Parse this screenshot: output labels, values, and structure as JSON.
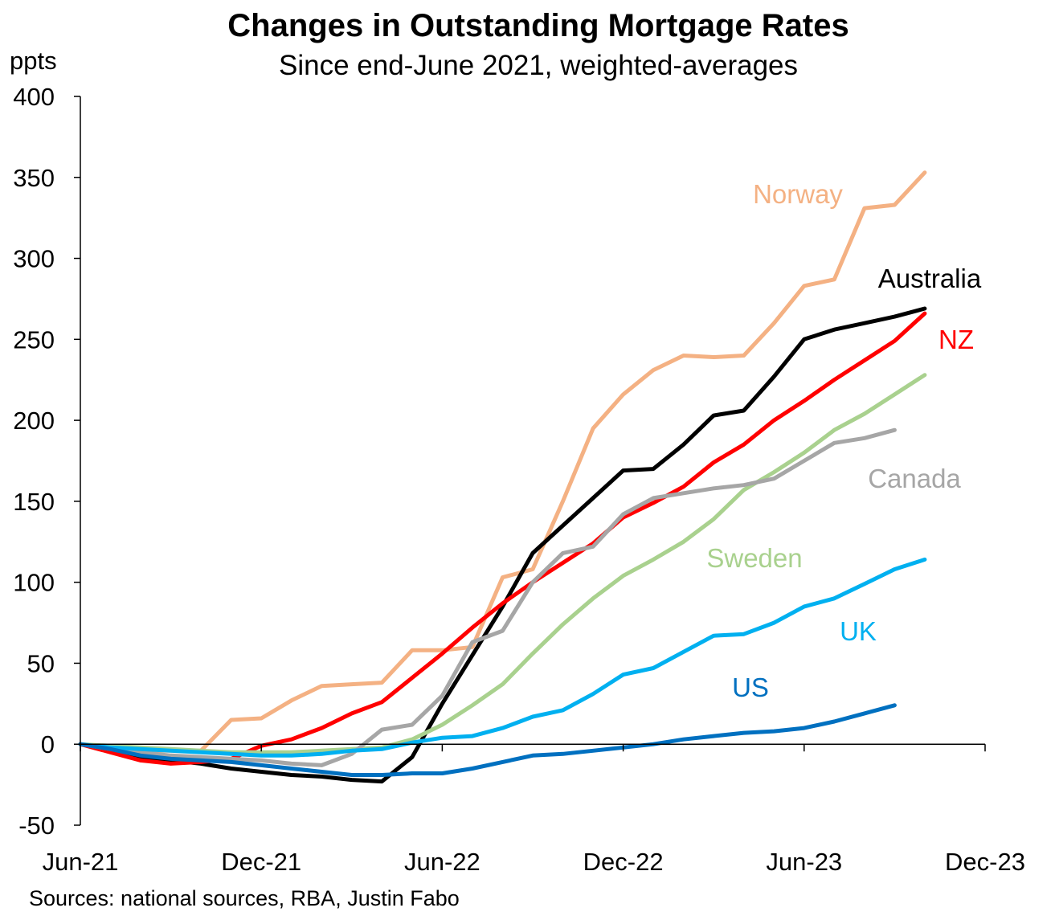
{
  "chart_data": {
    "type": "line",
    "title": "Changes in Outstanding Mortgage Rates",
    "subtitle": "Since end-June 2021, weighted-averages",
    "ylabel": "ppts",
    "source": "Sources: national sources, RBA, Justin Fabo",
    "ylim": [
      -50,
      400
    ],
    "yticks": [
      -50,
      0,
      50,
      100,
      150,
      200,
      250,
      300,
      350,
      400
    ],
    "ytick_labels": [
      "-50",
      "0",
      "50",
      "100",
      "150",
      "200",
      "250",
      "300",
      "350",
      "400"
    ],
    "xlim": [
      "2021-06",
      "2023-12"
    ],
    "xticks": [
      "2021-06",
      "2021-12",
      "2022-06",
      "2022-12",
      "2023-06",
      "2023-12"
    ],
    "xtick_labels": [
      "Jun-21",
      "Dec-21",
      "Jun-22",
      "Dec-22",
      "Jun-23",
      "Dec-23"
    ],
    "grid": false,
    "legend": "inline labels",
    "series": [
      {
        "name": "Norway",
        "color": "#F4B183",
        "x": [
          "2021-06",
          "2021-07",
          "2021-08",
          "2021-09",
          "2021-10",
          "2021-11",
          "2021-12",
          "2022-01",
          "2022-02",
          "2022-03",
          "2022-04",
          "2022-05",
          "2022-06",
          "2022-07",
          "2022-08",
          "2022-09",
          "2022-10",
          "2022-11",
          "2022-12",
          "2023-01",
          "2023-02",
          "2023-03",
          "2023-04",
          "2023-05",
          "2023-06",
          "2023-07",
          "2023-08",
          "2023-09",
          "2023-10"
        ],
        "values": [
          0,
          -2,
          -4,
          -4,
          -4,
          15,
          16,
          27,
          36,
          37,
          38,
          58,
          58,
          60,
          103,
          108,
          150,
          195,
          216,
          231,
          240,
          239,
          240,
          260,
          283,
          287,
          331,
          333,
          353
        ]
      },
      {
        "name": "Australia",
        "color": "#000000",
        "x": [
          "2021-06",
          "2021-07",
          "2021-08",
          "2021-09",
          "2021-10",
          "2021-11",
          "2021-12",
          "2022-01",
          "2022-02",
          "2022-03",
          "2022-04",
          "2022-05",
          "2022-06",
          "2022-07",
          "2022-08",
          "2022-09",
          "2022-10",
          "2022-11",
          "2022-12",
          "2023-01",
          "2023-02",
          "2023-03",
          "2023-04",
          "2023-05",
          "2023-06",
          "2023-07",
          "2023-08",
          "2023-09",
          "2023-10"
        ],
        "values": [
          0,
          -4,
          -8,
          -10,
          -12,
          -15,
          -17,
          -19,
          -20,
          -22,
          -23,
          -8,
          25,
          55,
          85,
          118,
          135,
          152,
          169,
          170,
          185,
          203,
          206,
          227,
          250,
          256,
          260,
          264,
          269
        ]
      },
      {
        "name": "NZ",
        "color": "#FF0000",
        "x": [
          "2021-06",
          "2021-07",
          "2021-08",
          "2021-09",
          "2021-10",
          "2021-11",
          "2021-12",
          "2022-01",
          "2022-02",
          "2022-03",
          "2022-04",
          "2022-05",
          "2022-06",
          "2022-07",
          "2022-08",
          "2022-09",
          "2022-10",
          "2022-11",
          "2022-12",
          "2023-01",
          "2023-02",
          "2023-03",
          "2023-04",
          "2023-05",
          "2023-06",
          "2023-07",
          "2023-08",
          "2023-09",
          "2023-10"
        ],
        "values": [
          0,
          -5,
          -10,
          -12,
          -11,
          -9,
          -1,
          3,
          10,
          19,
          26,
          41,
          56,
          72,
          87,
          100,
          112,
          124,
          140,
          149,
          159,
          174,
          185,
          200,
          212,
          225,
          237,
          249,
          266
        ]
      },
      {
        "name": "Sweden",
        "color": "#A9D18E",
        "x": [
          "2021-06",
          "2021-07",
          "2021-08",
          "2021-09",
          "2021-10",
          "2021-11",
          "2021-12",
          "2022-01",
          "2022-02",
          "2022-03",
          "2022-04",
          "2022-05",
          "2022-06",
          "2022-07",
          "2022-08",
          "2022-09",
          "2022-10",
          "2022-11",
          "2022-12",
          "2023-01",
          "2023-02",
          "2023-03",
          "2023-04",
          "2023-05",
          "2023-06",
          "2023-07",
          "2023-08",
          "2023-09",
          "2023-10"
        ],
        "values": [
          0,
          -1,
          -2,
          -3,
          -4,
          -5,
          -5,
          -5,
          -4,
          -3,
          -2,
          3,
          12,
          24,
          37,
          56,
          74,
          90,
          104,
          114,
          125,
          139,
          157,
          168,
          180,
          194,
          204,
          216,
          228
        ]
      },
      {
        "name": "Canada",
        "color": "#A6A6A6",
        "x": [
          "2021-06",
          "2021-07",
          "2021-08",
          "2021-09",
          "2021-10",
          "2021-11",
          "2021-12",
          "2022-01",
          "2022-02",
          "2022-03",
          "2022-04",
          "2022-05",
          "2022-06",
          "2022-07",
          "2022-08",
          "2022-09",
          "2022-10",
          "2022-11",
          "2022-12",
          "2023-01",
          "2023-02",
          "2023-03",
          "2023-04",
          "2023-05",
          "2023-06",
          "2023-07",
          "2023-08",
          "2023-09"
        ],
        "values": [
          0,
          -3,
          -5,
          -7,
          -8,
          -9,
          -10,
          -12,
          -13,
          -6,
          9,
          12,
          30,
          63,
          70,
          100,
          118,
          122,
          142,
          152,
          155,
          158,
          160,
          164,
          175,
          186,
          189,
          194
        ]
      },
      {
        "name": "UK",
        "color": "#00B0F0",
        "x": [
          "2021-06",
          "2021-07",
          "2021-08",
          "2021-09",
          "2021-10",
          "2021-11",
          "2021-12",
          "2022-01",
          "2022-02",
          "2022-03",
          "2022-04",
          "2022-05",
          "2022-06",
          "2022-07",
          "2022-08",
          "2022-09",
          "2022-10",
          "2022-11",
          "2022-12",
          "2023-01",
          "2023-02",
          "2023-03",
          "2023-04",
          "2023-05",
          "2023-06",
          "2023-07",
          "2023-08",
          "2023-09",
          "2023-10"
        ],
        "values": [
          0,
          -2,
          -3,
          -4,
          -5,
          -6,
          -7,
          -7,
          -6,
          -4,
          -3,
          1,
          4,
          5,
          10,
          17,
          21,
          31,
          43,
          47,
          57,
          67,
          68,
          75,
          85,
          90,
          99,
          108,
          114
        ]
      },
      {
        "name": "US",
        "color": "#0070C0",
        "x": [
          "2021-06",
          "2021-07",
          "2021-08",
          "2021-09",
          "2021-10",
          "2021-11",
          "2021-12",
          "2022-01",
          "2022-02",
          "2022-03",
          "2022-04",
          "2022-05",
          "2022-06",
          "2022-07",
          "2022-08",
          "2022-09",
          "2022-10",
          "2022-11",
          "2022-12",
          "2023-01",
          "2023-02",
          "2023-03",
          "2023-04",
          "2023-05",
          "2023-06",
          "2023-07",
          "2023-08",
          "2023-09"
        ],
        "values": [
          0,
          -3,
          -7,
          -9,
          -10,
          -11,
          -13,
          -15,
          -17,
          -19,
          -19,
          -18,
          -18,
          -15,
          -11,
          -7,
          -6,
          -4,
          -2,
          0,
          3,
          5,
          7,
          8,
          10,
          14,
          19,
          24
        ]
      }
    ]
  }
}
